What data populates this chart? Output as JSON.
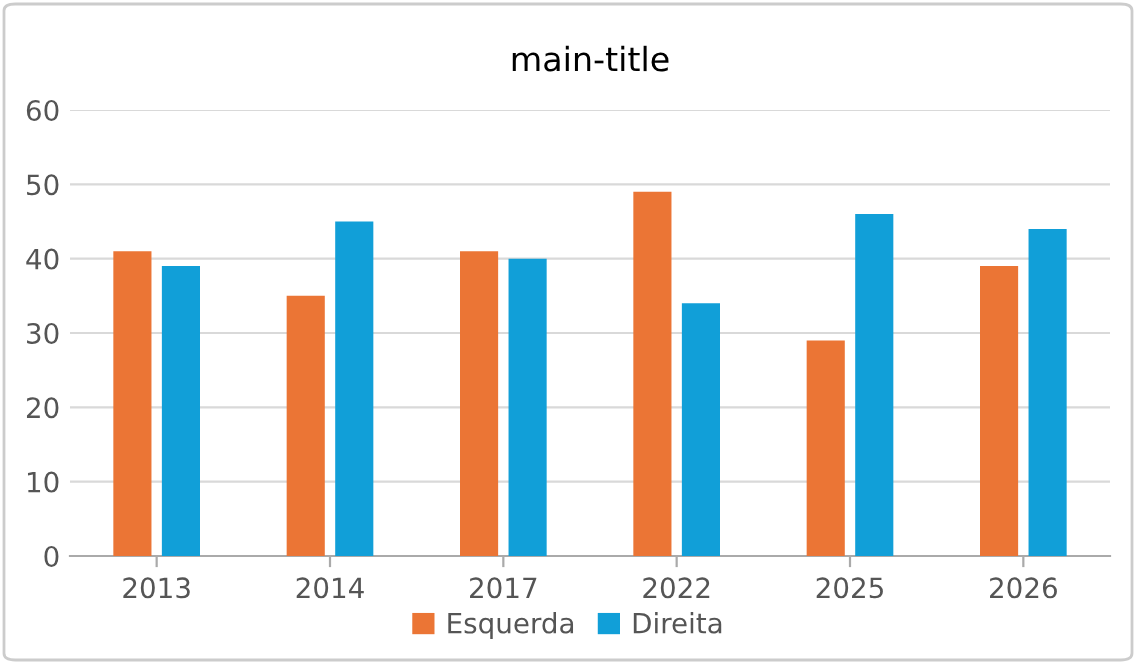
{
  "chart_data": {
    "type": "bar",
    "title": "main-title",
    "categories": [
      "2013",
      "2014",
      "2017",
      "2022",
      "2025",
      "2026"
    ],
    "series": [
      {
        "name": "Esquerda",
        "color": "#eb7535",
        "values": [
          41,
          35,
          41,
          49,
          29,
          39
        ]
      },
      {
        "name": "Direita",
        "color": "#119fd8",
        "values": [
          39,
          45,
          40,
          34,
          46,
          44
        ]
      }
    ],
    "ylim": [
      0,
      60
    ],
    "yticks": [
      0,
      10,
      20,
      30,
      40,
      50,
      60
    ],
    "grid": "y",
    "legend": "bottom"
  }
}
